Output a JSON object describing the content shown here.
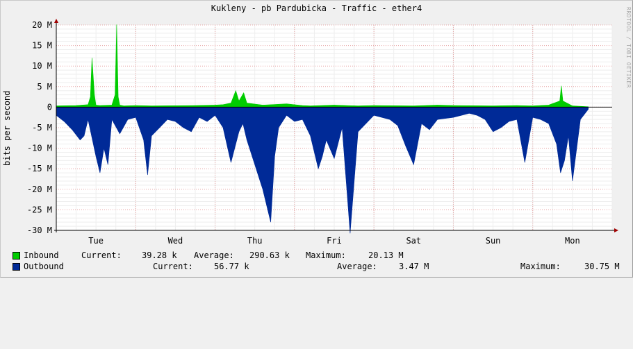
{
  "title": "Kukleny - pb Pardubicka - Traffic - ether4",
  "watermark": "RRDTOOL / TOBI OETIKER",
  "chart_data": {
    "type": "area",
    "title": "Kukleny - pb Pardubicka - Traffic - ether4",
    "ylabel": "bits per second",
    "xlabel": "",
    "ylim": [
      -30000000,
      20000000
    ],
    "y_ticks": [
      20000000,
      15000000,
      10000000,
      5000000,
      0,
      -5000000,
      -10000000,
      -15000000,
      -20000000,
      -25000000,
      -30000000
    ],
    "y_tick_labels": [
      "20 M",
      "15 M",
      "10 M",
      "5 M",
      "0",
      "-5 M",
      "-10 M",
      "-15 M",
      "-20 M",
      "-25 M",
      "-30 M"
    ],
    "x_tick_labels": [
      "Tue",
      "Wed",
      "Thu",
      "Fri",
      "Sat",
      "Sun",
      "Mon"
    ],
    "x_range_days": [
      0,
      7
    ],
    "grid": true,
    "legend_position": "bottom",
    "series": [
      {
        "name": "Inbound",
        "color": "#00cc00",
        "x": [
          0,
          0.25,
          0.4,
          0.43,
          0.45,
          0.48,
          0.5,
          0.55,
          0.7,
          0.74,
          0.76,
          0.78,
          0.8,
          0.85,
          1.0,
          1.2,
          1.5,
          1.75,
          2.0,
          2.1,
          2.2,
          2.26,
          2.3,
          2.36,
          2.4,
          2.6,
          2.9,
          3.1,
          3.2,
          3.5,
          3.8,
          4.0,
          4.5,
          4.8,
          5.0,
          5.5,
          5.8,
          6.0,
          6.2,
          6.34,
          6.36,
          6.38,
          6.5,
          6.7
        ],
        "values": [
          300000,
          400000,
          600000,
          2500000,
          12000000,
          3000000,
          500000,
          400000,
          500000,
          3000000,
          20100000,
          2500000,
          500000,
          300000,
          400000,
          300000,
          350000,
          400000,
          500000,
          600000,
          1000000,
          4000000,
          1500000,
          3500000,
          1000000,
          500000,
          800000,
          400000,
          300000,
          500000,
          300000,
          400000,
          300000,
          500000,
          400000,
          300000,
          400000,
          300000,
          500000,
          1500000,
          5200000,
          1500000,
          300000,
          100000
        ]
      },
      {
        "name": "Outbound",
        "color": "#002a97",
        "x": [
          0,
          0.1,
          0.2,
          0.3,
          0.35,
          0.4,
          0.5,
          0.55,
          0.6,
          0.65,
          0.7,
          0.8,
          0.9,
          1.0,
          1.1,
          1.15,
          1.2,
          1.3,
          1.4,
          1.5,
          1.6,
          1.7,
          1.8,
          1.9,
          2.0,
          2.1,
          2.2,
          2.3,
          2.35,
          2.4,
          2.5,
          2.6,
          2.7,
          2.75,
          2.8,
          2.9,
          3.0,
          3.1,
          3.2,
          3.3,
          3.35,
          3.4,
          3.5,
          3.6,
          3.7,
          3.8,
          4.0,
          4.2,
          4.3,
          4.4,
          4.5,
          4.6,
          4.7,
          4.8,
          5.0,
          5.2,
          5.3,
          5.4,
          5.5,
          5.6,
          5.7,
          5.8,
          5.9,
          6.0,
          6.1,
          6.2,
          6.25,
          6.3,
          6.35,
          6.4,
          6.45,
          6.5,
          6.6,
          6.7
        ],
        "values": [
          -2000000,
          -3500000,
          -5500000,
          -8000000,
          -7000000,
          -3000000,
          -12000000,
          -16000000,
          -10000000,
          -14000000,
          -3000000,
          -6500000,
          -3000000,
          -2500000,
          -8000000,
          -16500000,
          -7000000,
          -5000000,
          -3000000,
          -3500000,
          -5000000,
          -6000000,
          -2500000,
          -3500000,
          -2000000,
          -5000000,
          -13500000,
          -6000000,
          -4000000,
          -8000000,
          -14000000,
          -20000000,
          -28000000,
          -12000000,
          -5000000,
          -2000000,
          -3500000,
          -3000000,
          -7000000,
          -15000000,
          -12000000,
          -8000000,
          -12500000,
          -5000000,
          -30750000,
          -6000000,
          -2000000,
          -3000000,
          -4500000,
          -9500000,
          -14000000,
          -4000000,
          -5500000,
          -3000000,
          -2500000,
          -1500000,
          -2000000,
          -3000000,
          -6000000,
          -5000000,
          -3500000,
          -3000000,
          -13500000,
          -2500000,
          -3000000,
          -4000000,
          -6500000,
          -9000000,
          -16000000,
          -13000000,
          -7000000,
          -18000000,
          -3000000,
          -500000
        ]
      }
    ],
    "legend": [
      {
        "name": "Inbound",
        "current": "39.28 k",
        "average": "290.63 k",
        "maximum": "20.13 M"
      },
      {
        "name": "Outbound",
        "current": "56.77 k",
        "average": "3.47 M",
        "maximum": "30.75 M"
      }
    ]
  },
  "legend_labels": {
    "current": "Current:",
    "average": "Average:",
    "maximum": "Maximum:"
  }
}
